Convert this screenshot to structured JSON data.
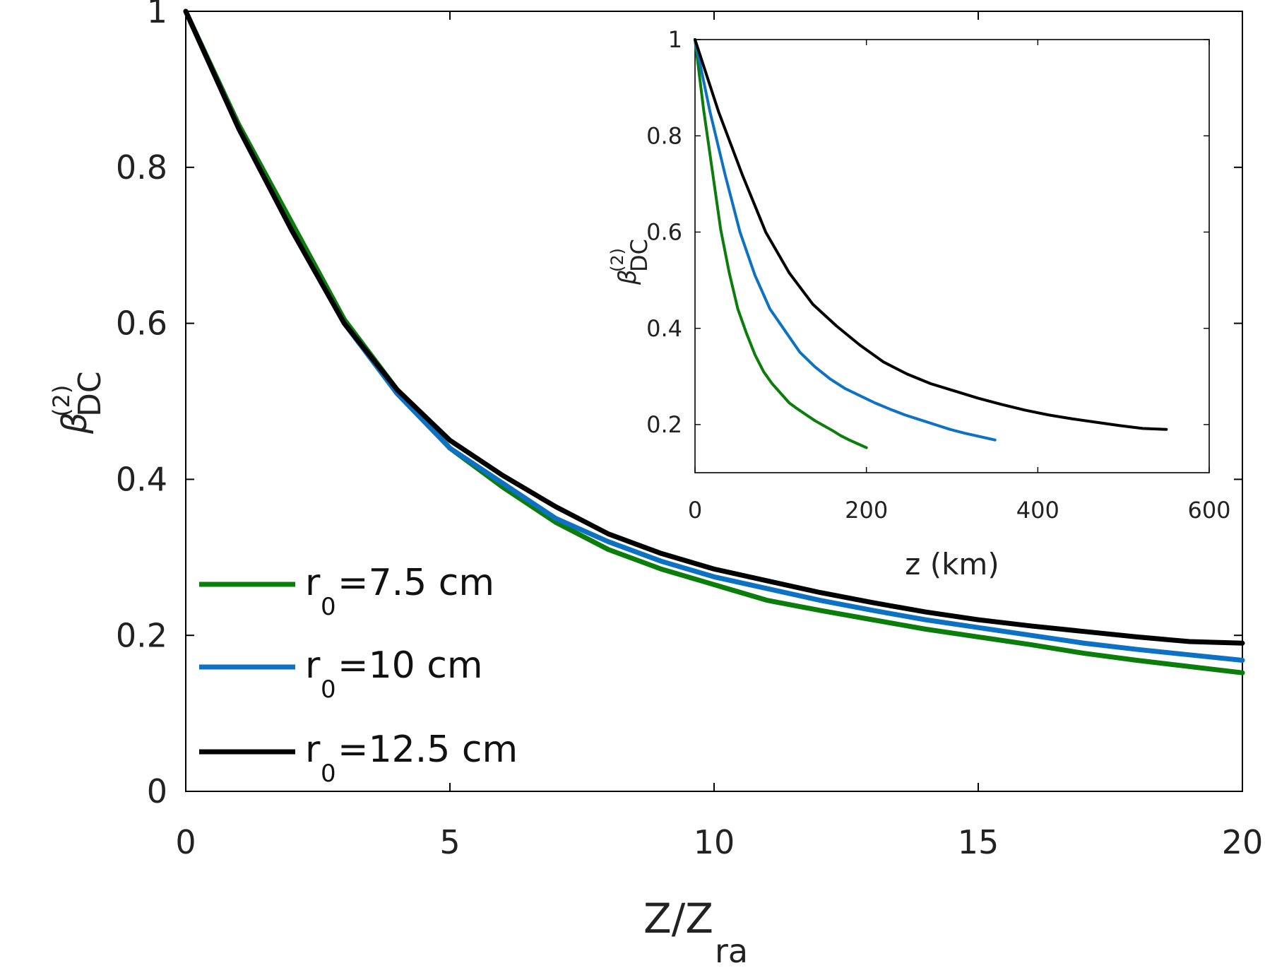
{
  "colors": {
    "green": "#0b7d0b",
    "blue": "#0d72c4",
    "black": "#000000"
  },
  "chart_data": [
    {
      "type": "line",
      "role": "main",
      "xlabel": "Z/Z",
      "xlabel_sub": "ra",
      "ylabel": "β",
      "ylabel_sup": "(2)",
      "ylabel_sub": "DC",
      "xlim": [
        0,
        20
      ],
      "ylim": [
        0,
        1
      ],
      "xticks": [
        "0",
        "5",
        "10",
        "15",
        "20"
      ],
      "yticks": [
        "0",
        "0.2",
        "0.4",
        "0.6",
        "0.8",
        "1"
      ],
      "legend": {
        "placement": "bottom-left",
        "entries": [
          {
            "prefix": "r",
            "sub": "0",
            "suffix": "=7.5 cm",
            "color": "#0b7d0b"
          },
          {
            "prefix": "r",
            "sub": "0",
            "suffix": "=10 cm",
            "color": "#0d72c4"
          },
          {
            "prefix": "r",
            "sub": "0",
            "suffix": "=12.5 cm",
            "color": "#000000"
          }
        ]
      },
      "series": [
        {
          "color": "#0b7d0b",
          "x": [
            0,
            1,
            2,
            3,
            4,
            5,
            6,
            7,
            8,
            9,
            10,
            11,
            12,
            13,
            14,
            15,
            16,
            17,
            18,
            19,
            20
          ],
          "y": [
            1.0,
            0.855,
            0.73,
            0.605,
            0.515,
            0.44,
            0.39,
            0.345,
            0.31,
            0.285,
            0.265,
            0.245,
            0.232,
            0.22,
            0.208,
            0.198,
            0.188,
            0.177,
            0.168,
            0.16,
            0.152
          ]
        },
        {
          "color": "#0d72c4",
          "x": [
            0,
            1,
            2,
            3,
            4,
            5,
            6,
            7,
            8,
            9,
            10,
            11,
            12,
            13,
            14,
            15,
            16,
            17,
            18,
            19,
            20
          ],
          "y": [
            1.0,
            0.85,
            0.72,
            0.6,
            0.51,
            0.44,
            0.395,
            0.35,
            0.32,
            0.295,
            0.275,
            0.26,
            0.245,
            0.232,
            0.22,
            0.21,
            0.2,
            0.19,
            0.182,
            0.175,
            0.168
          ]
        },
        {
          "color": "#000000",
          "x": [
            0,
            1,
            2,
            3,
            4,
            5,
            6,
            7,
            8,
            9,
            10,
            11,
            12,
            13,
            14,
            15,
            16,
            17,
            18,
            19,
            20
          ],
          "y": [
            1.0,
            0.85,
            0.72,
            0.6,
            0.515,
            0.45,
            0.405,
            0.365,
            0.33,
            0.305,
            0.285,
            0.27,
            0.255,
            0.242,
            0.23,
            0.22,
            0.212,
            0.205,
            0.198,
            0.192,
            0.19
          ]
        }
      ]
    },
    {
      "type": "line",
      "role": "inset",
      "xlabel": "z (km)",
      "ylabel": "β",
      "ylabel_sup": "(2)",
      "ylabel_sub": "DC",
      "xlim": [
        0,
        600
      ],
      "ylim": [
        0.1,
        1
      ],
      "xticks": [
        "0",
        "200",
        "400",
        "600"
      ],
      "yticks": [
        "0.2",
        "0.4",
        "0.6",
        "0.8",
        "1"
      ],
      "series": [
        {
          "color": "#0b7d0b",
          "x": [
            0,
            10,
            20,
            30,
            40,
            50,
            60,
            70,
            80,
            90,
            100,
            110,
            120,
            130,
            140,
            150,
            160,
            170,
            180,
            190,
            200
          ],
          "y": [
            1.0,
            0.855,
            0.73,
            0.605,
            0.515,
            0.44,
            0.39,
            0.345,
            0.31,
            0.285,
            0.265,
            0.245,
            0.232,
            0.22,
            0.208,
            0.198,
            0.188,
            0.177,
            0.168,
            0.16,
            0.152
          ]
        },
        {
          "color": "#0d72c4",
          "x": [
            0,
            17.5,
            35,
            52.5,
            70,
            87.5,
            105,
            122.5,
            140,
            157.5,
            175,
            192.5,
            210,
            227.5,
            245,
            262.5,
            280,
            297.5,
            315,
            332.5,
            350
          ],
          "y": [
            1.0,
            0.85,
            0.72,
            0.6,
            0.51,
            0.44,
            0.395,
            0.35,
            0.32,
            0.295,
            0.275,
            0.26,
            0.245,
            0.232,
            0.22,
            0.21,
            0.2,
            0.19,
            0.182,
            0.175,
            0.168
          ]
        },
        {
          "color": "#000000",
          "x": [
            0,
            27.5,
            55,
            82.5,
            110,
            137.5,
            165,
            192.5,
            220,
            247.5,
            275,
            302.5,
            330,
            357.5,
            385,
            412.5,
            440,
            467.5,
            495,
            522.5,
            550
          ],
          "y": [
            1.0,
            0.85,
            0.72,
            0.6,
            0.515,
            0.45,
            0.405,
            0.365,
            0.33,
            0.305,
            0.285,
            0.27,
            0.255,
            0.242,
            0.23,
            0.22,
            0.212,
            0.205,
            0.198,
            0.192,
            0.19
          ]
        }
      ]
    }
  ]
}
